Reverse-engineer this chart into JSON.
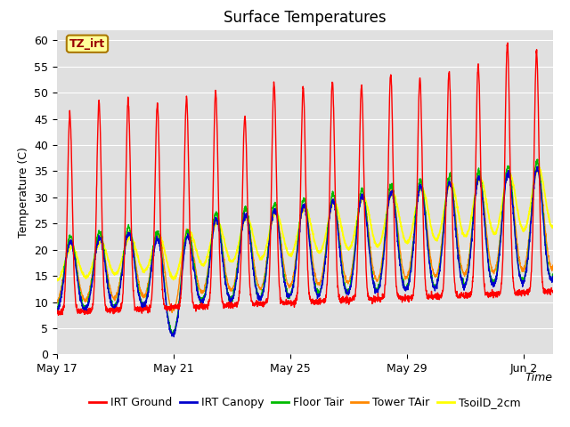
{
  "title": "Surface Temperatures",
  "xlabel": "Time",
  "ylabel": "Temperature (C)",
  "ylim": [
    0,
    62
  ],
  "yticks": [
    0,
    5,
    10,
    15,
    20,
    25,
    30,
    35,
    40,
    45,
    50,
    55,
    60
  ],
  "bg_color": "#e0e0e0",
  "fig_color": "#ffffff",
  "legend_labels": [
    "IRT Ground",
    "IRT Canopy",
    "Floor Tair",
    "Tower TAir",
    "TsoilD_2cm"
  ],
  "legend_colors": [
    "#ff0000",
    "#0000cc",
    "#00bb00",
    "#ff8800",
    "#ffff00"
  ],
  "tz_label": "TZ_irt",
  "tz_bg": "#ffff99",
  "tz_border": "#aa7700",
  "tz_text": "#990000",
  "x_tick_labels": [
    "May 17",
    "May 21",
    "May 25",
    "May 29",
    "Jun 2"
  ],
  "x_tick_positions": [
    0,
    4,
    8,
    12,
    16
  ],
  "n_days": 17,
  "pts_per_day": 144,
  "title_fontsize": 12,
  "axis_label_fontsize": 9,
  "tick_fontsize": 9,
  "legend_fontsize": 9
}
